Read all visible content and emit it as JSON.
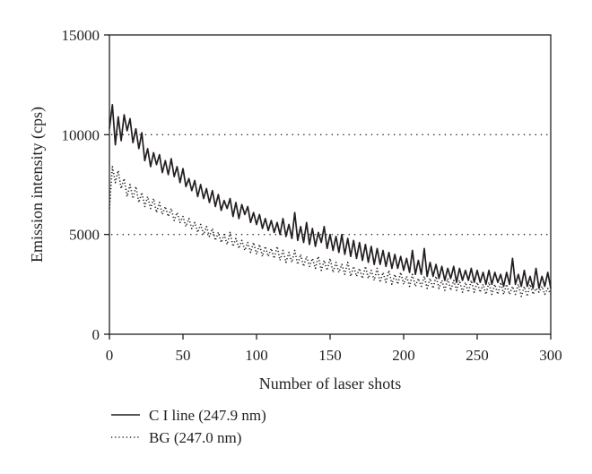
{
  "chart_data": {
    "type": "line",
    "title": "",
    "xlabel": "Number of laser shots",
    "ylabel": "Emission intensity (cps)",
    "xlim": [
      0,
      300
    ],
    "ylim": [
      0,
      15000
    ],
    "x_ticks": [
      0,
      50,
      100,
      150,
      200,
      250,
      300
    ],
    "y_ticks": [
      0,
      5000,
      10000,
      15000
    ],
    "x_tick_labels": [
      "0",
      "50",
      "100",
      "150",
      "200",
      "250",
      "300"
    ],
    "y_tick_labels": [
      "0",
      "5000",
      "10000",
      "15000"
    ],
    "grid": "dotted horizontal lines at 5000 and 10000",
    "legend_position": "below-left",
    "series": [
      {
        "name": "C I line (247.9 nm)",
        "style": "solid",
        "color": "#231f20",
        "x": [
          0,
          2,
          4,
          6,
          8,
          10,
          12,
          14,
          16,
          18,
          20,
          22,
          24,
          26,
          28,
          30,
          32,
          34,
          36,
          38,
          40,
          42,
          44,
          46,
          48,
          50,
          52,
          54,
          56,
          58,
          60,
          62,
          64,
          66,
          68,
          70,
          72,
          74,
          76,
          78,
          80,
          82,
          84,
          86,
          88,
          90,
          92,
          94,
          96,
          98,
          100,
          102,
          104,
          106,
          108,
          110,
          112,
          114,
          116,
          118,
          120,
          122,
          124,
          126,
          128,
          130,
          132,
          134,
          136,
          138,
          140,
          142,
          144,
          146,
          148,
          150,
          152,
          154,
          156,
          158,
          160,
          162,
          164,
          166,
          168,
          170,
          172,
          174,
          176,
          178,
          180,
          182,
          184,
          186,
          188,
          190,
          192,
          194,
          196,
          198,
          200,
          202,
          204,
          206,
          208,
          210,
          212,
          214,
          216,
          218,
          220,
          222,
          224,
          226,
          228,
          230,
          232,
          234,
          236,
          238,
          240,
          242,
          244,
          246,
          248,
          250,
          252,
          254,
          256,
          258,
          260,
          262,
          264,
          266,
          268,
          270,
          272,
          274,
          276,
          278,
          280,
          282,
          284,
          286,
          288,
          290,
          292,
          294,
          296,
          298,
          300
        ],
        "y": [
          10300,
          11500,
          9500,
          10900,
          9700,
          11000,
          10200,
          10800,
          9600,
          10300,
          9300,
          10100,
          8700,
          9300,
          8400,
          9100,
          8500,
          9000,
          8100,
          8700,
          8000,
          8800,
          7900,
          8400,
          7600,
          8300,
          7400,
          7800,
          7200,
          7700,
          6900,
          7500,
          6800,
          7300,
          6600,
          7200,
          6400,
          7000,
          6200,
          6700,
          6300,
          6800,
          5900,
          6600,
          5800,
          6500,
          6000,
          6400,
          5600,
          6100,
          5500,
          6000,
          5300,
          5800,
          5200,
          5700,
          5100,
          5600,
          5000,
          5800,
          4900,
          5500,
          4800,
          6100,
          4700,
          5400,
          4600,
          5600,
          4500,
          5300,
          4400,
          5100,
          4600,
          5400,
          4300,
          5000,
          4200,
          4900,
          4100,
          5000,
          4000,
          4800,
          3900,
          4700,
          3800,
          4600,
          3700,
          4500,
          3600,
          4400,
          3500,
          4300,
          3500,
          4200,
          3400,
          4100,
          3300,
          4000,
          3300,
          3900,
          3200,
          3800,
          3100,
          4200,
          3000,
          3700,
          3000,
          4300,
          2900,
          3600,
          2900,
          3500,
          2800,
          3400,
          2700,
          3300,
          2800,
          3400,
          2600,
          3300,
          2700,
          3200,
          2700,
          3300,
          2600,
          3200,
          2600,
          3100,
          2500,
          3200,
          2500,
          3100,
          2600,
          3000,
          2400,
          3100,
          2500,
          3800,
          2500,
          3000,
          2400,
          3200,
          2400,
          2900,
          2300,
          3300,
          2300,
          2900,
          2400,
          3100,
          2300
        ]
      },
      {
        "name": "BG (247.0 nm)",
        "style": "dotted",
        "color": "#231f20",
        "x": [
          0,
          2,
          4,
          6,
          8,
          10,
          12,
          14,
          16,
          18,
          20,
          22,
          24,
          26,
          28,
          30,
          32,
          34,
          36,
          38,
          40,
          42,
          44,
          46,
          48,
          50,
          52,
          54,
          56,
          58,
          60,
          62,
          64,
          66,
          68,
          70,
          72,
          74,
          76,
          78,
          80,
          82,
          84,
          86,
          88,
          90,
          92,
          94,
          96,
          98,
          100,
          102,
          104,
          106,
          108,
          110,
          112,
          114,
          116,
          118,
          120,
          122,
          124,
          126,
          128,
          130,
          132,
          134,
          136,
          138,
          140,
          142,
          144,
          146,
          148,
          150,
          152,
          154,
          156,
          158,
          160,
          162,
          164,
          166,
          168,
          170,
          172,
          174,
          176,
          178,
          180,
          182,
          184,
          186,
          188,
          190,
          192,
          194,
          196,
          198,
          200,
          202,
          204,
          206,
          208,
          210,
          212,
          214,
          216,
          218,
          220,
          222,
          224,
          226,
          228,
          230,
          232,
          234,
          236,
          238,
          240,
          242,
          244,
          246,
          248,
          250,
          252,
          254,
          256,
          258,
          260,
          262,
          264,
          266,
          268,
          270,
          272,
          274,
          276,
          278,
          280,
          282,
          284,
          286,
          288,
          290,
          292,
          294,
          296,
          298,
          300
        ],
        "y": [
          6300,
          8400,
          7600,
          8200,
          7300,
          7800,
          6900,
          7500,
          6800,
          7400,
          6600,
          7100,
          6400,
          6900,
          6300,
          6800,
          6100,
          6600,
          6000,
          6400,
          5900,
          6300,
          5700,
          6100,
          5600,
          5900,
          5400,
          5800,
          5300,
          5600,
          5100,
          5500,
          5000,
          5400,
          4900,
          5300,
          4700,
          5100,
          4600,
          5000,
          4500,
          5100,
          4400,
          4800,
          4300,
          4700,
          4200,
          4600,
          4100,
          4600,
          4000,
          4500,
          3900,
          4400,
          3900,
          4300,
          3800,
          4400,
          3700,
          4200,
          3600,
          4100,
          3600,
          4200,
          3500,
          4000,
          3400,
          3900,
          3400,
          3800,
          3300,
          3900,
          3200,
          3700,
          3200,
          3800,
          3100,
          3600,
          3100,
          3500,
          3000,
          3600,
          2900,
          3400,
          2900,
          3300,
          2800,
          3400,
          2800,
          3200,
          2700,
          3300,
          2600,
          3100,
          2600,
          3200,
          2500,
          3000,
          2500,
          3100,
          2500,
          2900,
          2400,
          3000,
          2400,
          2800,
          2400,
          2900,
          2300,
          2800,
          2300,
          2900,
          2300,
          2700,
          2200,
          2800,
          2200,
          2700,
          2200,
          2700,
          2100,
          2600,
          2100,
          2700,
          2100,
          2600,
          2100,
          2500,
          2000,
          2600,
          2000,
          2500,
          2000,
          2600,
          2000,
          2500,
          2000,
          2400,
          2000,
          2500,
          1900,
          2400,
          1900,
          2500,
          2000,
          2300,
          2100,
          2400,
          2000,
          2300,
          2000
        ]
      }
    ]
  }
}
